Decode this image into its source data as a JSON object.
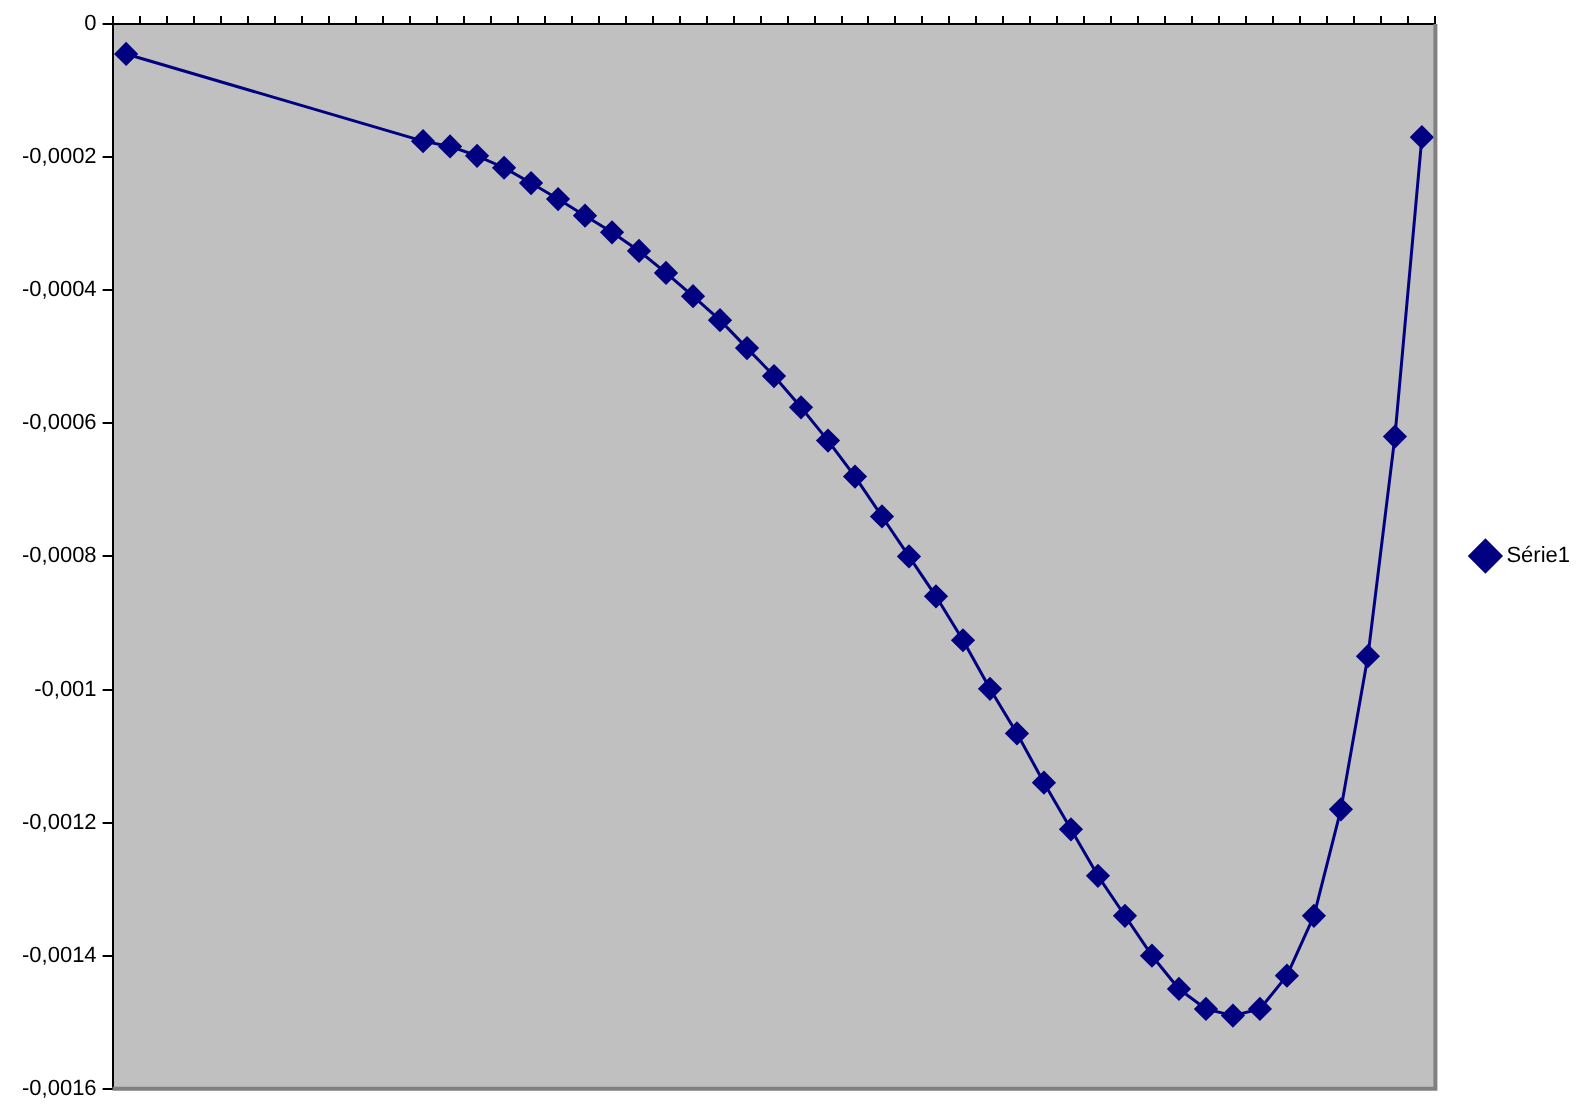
{
  "chart_data": {
    "type": "line",
    "categories": [
      null,
      null,
      null,
      null,
      null,
      null,
      null,
      null,
      null,
      null,
      null,
      null,
      null,
      null,
      null,
      null,
      null,
      null,
      null,
      null,
      null,
      null,
      null,
      null,
      null,
      null,
      null,
      null,
      null,
      null,
      null,
      null,
      null,
      null,
      null,
      null,
      null,
      null,
      null,
      null,
      null,
      null,
      null,
      null,
      null,
      null,
      null,
      null,
      null
    ],
    "series": [
      {
        "name": "Série1",
        "color": "#000080",
        "values": [
          -4.5e-05,
          null,
          null,
          null,
          null,
          null,
          null,
          null,
          null,
          null,
          null,
          -0.000176,
          -0.000184,
          -0.000198,
          -0.000216,
          -0.000239,
          -0.000263,
          -0.000288,
          -0.000313,
          -0.000341,
          -0.000374,
          -0.000409,
          -0.000445,
          -0.000487,
          -0.000529,
          -0.000576,
          -0.000626,
          -0.00068,
          -0.00074,
          -0.0008,
          -0.00086,
          -0.000926,
          -0.000999,
          -0.001066,
          -0.00114,
          -0.00121,
          -0.00128,
          -0.00134,
          -0.0014,
          -0.00145,
          -0.00148,
          -0.00149,
          -0.00148,
          -0.00143,
          -0.00134,
          -0.00118,
          -0.00095,
          -0.00062,
          -0.00017
        ]
      }
    ],
    "ylim": [
      -0.0016,
      0
    ],
    "yticks": [
      {
        "value": -0.0016,
        "label": "-0,0016"
      },
      {
        "value": -0.0014,
        "label": "-0,0014"
      },
      {
        "value": -0.0012,
        "label": "-0,0012"
      },
      {
        "value": -0.001,
        "label": "-0,001"
      },
      {
        "value": -0.0008,
        "label": "-0,0008"
      },
      {
        "value": -0.0006,
        "label": "-0,0006"
      },
      {
        "value": -0.0004,
        "label": "-0,0004"
      },
      {
        "value": -0.0002,
        "label": "-0,0002"
      },
      0
    ],
    "tick_labels": "y",
    "grid": false,
    "legend": "right",
    "marker": "diamond",
    "line_style": "solid"
  }
}
